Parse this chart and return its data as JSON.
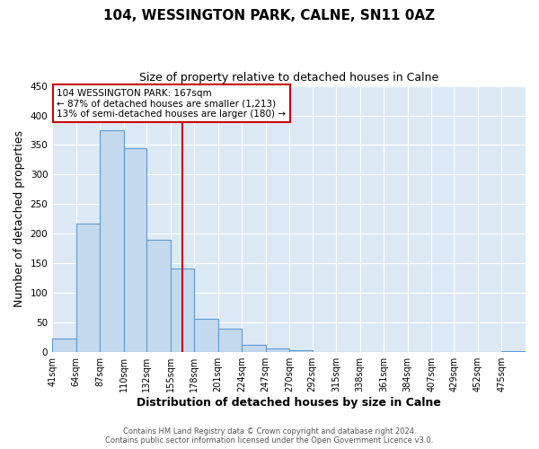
{
  "title": "104, WESSINGTON PARK, CALNE, SN11 0AZ",
  "subtitle": "Size of property relative to detached houses in Calne",
  "xlabel": "Distribution of detached houses by size in Calne",
  "ylabel": "Number of detached properties",
  "bin_edges": [
    41,
    64,
    87,
    110,
    132,
    155,
    178,
    201,
    224,
    247,
    270,
    292,
    315,
    338,
    361,
    384,
    407,
    429,
    452,
    475,
    498
  ],
  "bar_heights": [
    23,
    217,
    375,
    345,
    190,
    142,
    56,
    40,
    12,
    7,
    3,
    1,
    0,
    0,
    1,
    0,
    0,
    0,
    0,
    2
  ],
  "bar_color": "#c5d9ee",
  "bar_edge_color": "#5b9bd5",
  "property_value": 167,
  "vline_color": "#cc0000",
  "annotation_text": "104 WESSINGTON PARK: 167sqm\n← 87% of detached houses are smaller (1,213)\n13% of semi-detached houses are larger (180) →",
  "annotation_box_color": "#ffffff",
  "annotation_box_edge": "#cc0000",
  "ylim": [
    0,
    450
  ],
  "footer_line1": "Contains HM Land Registry data © Crown copyright and database right 2024.",
  "footer_line2": "Contains public sector information licensed under the Open Government Licence v3.0.",
  "fig_background_color": "#ffffff",
  "plot_background": "#dce9f5",
  "grid_color": "#ffffff",
  "title_fontsize": 11,
  "subtitle_fontsize": 9,
  "tick_label_fontsize": 7,
  "axis_label_fontsize": 9,
  "footer_fontsize": 6,
  "yticks": [
    0,
    50,
    100,
    150,
    200,
    250,
    300,
    350,
    400,
    450
  ]
}
